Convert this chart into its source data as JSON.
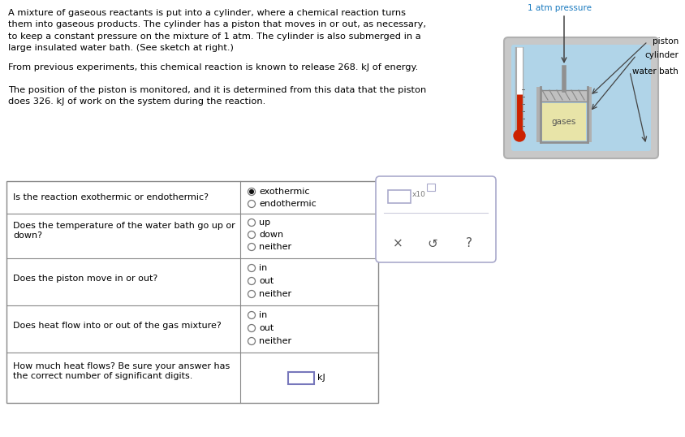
{
  "bg_color": "#ffffff",
  "text_color": "#000000",
  "paragraph1": "A mixture of gaseous reactants is put into a cylinder, where a chemical reaction turns\nthem into gaseous products. The cylinder has a piston that moves in or out, as necessary,\nto keep a constant pressure on the mixture of 1 atm. The cylinder is also submerged in a\nlarge insulated water bath. (See sketch at right.)",
  "paragraph2": "From previous experiments, this chemical reaction is known to release 268. kJ of energy.",
  "paragraph3": "The position of the piston is monitored, and it is determined from this data that the piston\ndoes 326. kJ of work on the system during the reaction.",
  "questions": [
    {
      "question": "Is the reaction exothermic or endothermic?",
      "options": [
        "exothermic",
        "endothermic"
      ],
      "selected": 0
    },
    {
      "question": "Does the temperature of the water bath go up or\ndown?",
      "options": [
        "up",
        "down",
        "neither"
      ],
      "selected": -1
    },
    {
      "question": "Does the piston move in or out?",
      "options": [
        "in",
        "out",
        "neither"
      ],
      "selected": -1
    },
    {
      "question": "Does heat flow into or out of the gas mixture?",
      "options": [
        "in",
        "out",
        "neither"
      ],
      "selected": -1
    },
    {
      "question": "How much heat flows? Be sure your answer has\nthe correct number of significant digits.",
      "options": [],
      "selected": -1,
      "has_input": true
    }
  ],
  "diagram_label_pressure": "1 atm pressure",
  "diagram_label_piston": "piston",
  "diagram_label_cylinder": "cylinder",
  "diagram_label_water_bath": "water bath",
  "diagram_label_gases": "gases",
  "answer_box_label": "kJ",
  "table_line_color": "#888888",
  "blue_label_color": "#1a7abf",
  "input_box_color": "#7777bb",
  "radio_border_color": "#777777",
  "panel_border_color": "#aaaacc",
  "arrow_color": "#444444"
}
